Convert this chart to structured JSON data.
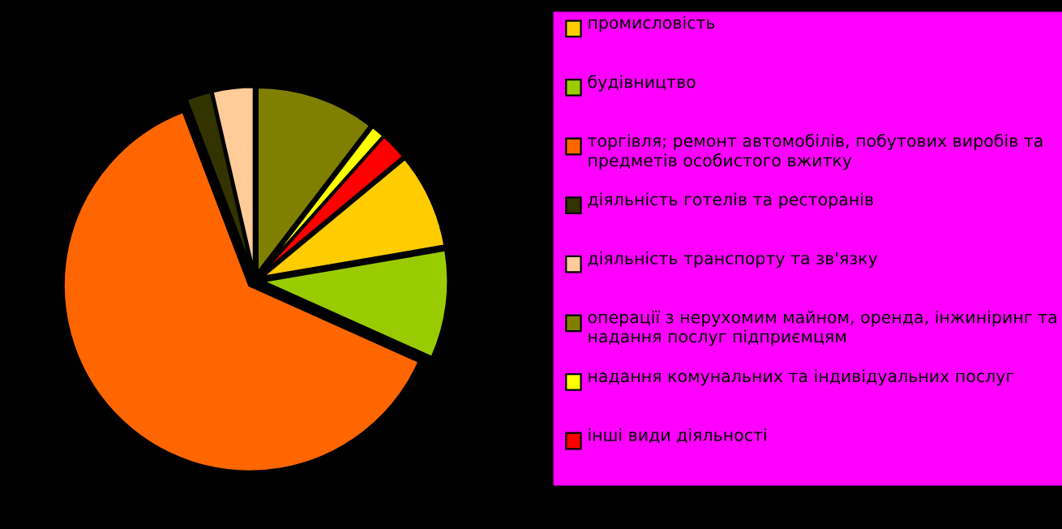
{
  "chart_data": {
    "type": "pie",
    "categories": [
      "промисловість",
      "будівництво",
      "торгівля; ремонт автомобілів, побутових виробів та предметів особистого вжитку",
      "діяльність готелів та ресторанів",
      "діяльність транспорту та зв'язку",
      "операції з нерухомим майном, оренда, інжиніринг та надання послуг підприємцям",
      "надання комунальних та індивідуальних послуг",
      "інші види діяльності"
    ],
    "values": [
      8.3,
      9.4,
      62.5,
      2.2,
      3.6,
      10.4,
      1.2,
      2.4
    ],
    "colors": [
      "#ffcc00",
      "#99cc00",
      "#ff6600",
      "#333300",
      "#ffcc99",
      "#808000",
      "#ffff00",
      "#ff0000"
    ],
    "legend": "right"
  }
}
